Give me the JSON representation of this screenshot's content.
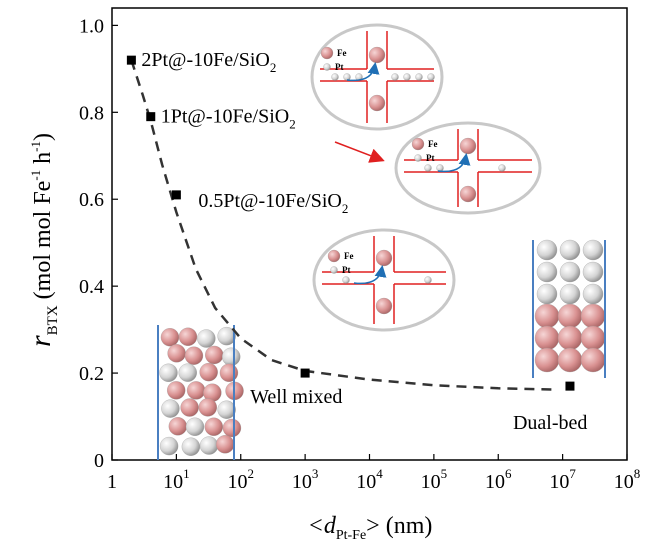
{
  "chart_data": {
    "type": "scatter",
    "log_x": true,
    "x": [
      2,
      4,
      10,
      1000,
      13000000
    ],
    "values": [
      0.92,
      0.79,
      0.61,
      0.2,
      0.17
    ],
    "color": "#000000",
    "point_labels": [
      {
        "text": "2Pt@-10Fe/SiO",
        "sub": "2"
      },
      {
        "text": "1Pt@-10Fe/SiO",
        "sub": "2"
      },
      {
        "text": "0.5Pt@-10Fe/SiO",
        "sub": "2"
      },
      {
        "text": "Well mixed"
      },
      {
        "text": "Dual-bed"
      }
    ],
    "trend": {
      "color": "#333333",
      "x": [
        2,
        3,
        4,
        6,
        10,
        20,
        40,
        100,
        300,
        1000,
        10000,
        100000,
        1000000,
        8000000
      ],
      "values": [
        0.92,
        0.84,
        0.78,
        0.68,
        0.57,
        0.44,
        0.35,
        0.28,
        0.23,
        0.205,
        0.185,
        0.172,
        0.165,
        0.162
      ]
    },
    "xlim": [
      1,
      100000000
    ],
    "ylim": [
      0,
      1.04
    ],
    "xticks": [
      {
        "value": 1,
        "label": "1"
      },
      {
        "value": 10,
        "label": "10",
        "power": "1"
      },
      {
        "value": 100,
        "label": "10",
        "power": "2"
      },
      {
        "value": 1000,
        "label": "10",
        "power": "3"
      },
      {
        "value": 10000,
        "label": "10",
        "power": "4"
      },
      {
        "value": 100000,
        "label": "10",
        "power": "5"
      },
      {
        "value": 1000000,
        "label": "10",
        "power": "6"
      },
      {
        "value": 10000000,
        "label": "10",
        "power": "7"
      },
      {
        "value": 100000000,
        "label": "10",
        "power": "8"
      }
    ],
    "yticks": [
      0,
      0.2,
      0.4,
      0.6,
      0.8,
      {
        "value": 1.0,
        "label": "1.0"
      }
    ],
    "xlabel": {
      "pre": "<d",
      "sub": "Pt-Fe",
      "post": "> (nm)"
    },
    "ylabel": {
      "italic": "r",
      "sub": "BTX",
      "a": " (mol mol Fe",
      "sup1": "-1",
      "b": " h",
      "sup2": "-1",
      "c": ")"
    },
    "insets": [
      {
        "fe": "Fe",
        "pt": "Pt"
      },
      {
        "fe": "Fe",
        "pt": "Pt"
      },
      {
        "fe": "Fe",
        "pt": "Pt"
      }
    ]
  }
}
